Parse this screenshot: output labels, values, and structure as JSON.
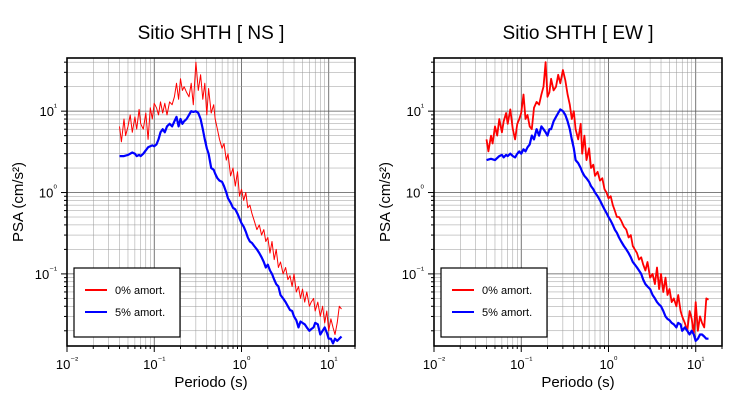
{
  "chart_data": [
    {
      "type": "line",
      "title": "Sitio SHTH [ NS ]",
      "xlabel": "Periodo (s)",
      "ylabel": "PSA (cm/s²)",
      "xscale": "log",
      "yscale": "log",
      "xlim": [
        0.01,
        20
      ],
      "ylim": [
        0.013,
        45
      ],
      "grid": true,
      "legend_position": "bottom-left",
      "x_ticks": [
        "10⁻²",
        "10⁻¹",
        "10⁰",
        "10¹"
      ],
      "y_ticks": [
        "10⁻¹",
        "10⁰",
        "10¹"
      ],
      "series": [
        {
          "name": "0% amort.",
          "color": "#ff0000",
          "x": [
            0.04,
            0.042,
            0.045,
            0.047,
            0.05,
            0.053,
            0.056,
            0.06,
            0.063,
            0.067,
            0.07,
            0.075,
            0.08,
            0.085,
            0.09,
            0.095,
            0.1,
            0.106,
            0.112,
            0.118,
            0.125,
            0.132,
            0.14,
            0.15,
            0.16,
            0.17,
            0.18,
            0.19,
            0.2,
            0.21,
            0.22,
            0.235,
            0.25,
            0.265,
            0.28,
            0.3,
            0.32,
            0.34,
            0.36,
            0.38,
            0.4,
            0.42,
            0.45,
            0.48,
            0.5,
            0.53,
            0.56,
            0.6,
            0.63,
            0.67,
            0.7,
            0.75,
            0.8,
            0.85,
            0.9,
            0.95,
            1.0,
            1.06,
            1.12,
            1.18,
            1.25,
            1.32,
            1.4,
            1.5,
            1.6,
            1.7,
            1.8,
            1.9,
            2.0,
            2.12,
            2.24,
            2.37,
            2.5,
            2.65,
            2.8,
            3.0,
            3.2,
            3.4,
            3.6,
            3.8,
            4.0,
            4.25,
            4.5,
            4.75,
            5.0,
            5.3,
            5.6,
            6.0,
            6.3,
            6.7,
            7.0,
            7.5,
            8.0,
            8.5,
            9.0,
            9.5,
            10.0,
            10.6,
            11.2,
            11.8,
            12.5,
            13.2,
            14.0
          ],
          "y": [
            6.5,
            4.2,
            8.0,
            5.0,
            6.5,
            9.0,
            5.5,
            8.5,
            6.0,
            10.5,
            7.0,
            6.0,
            9.5,
            4.5,
            11.0,
            8.0,
            12.5,
            11.0,
            9.0,
            13.0,
            9.5,
            12.5,
            9.0,
            13.0,
            12.0,
            15.0,
            22.0,
            14.0,
            25.0,
            18.0,
            20.0,
            17.0,
            15.0,
            22.0,
            12.0,
            40.0,
            18.0,
            28.0,
            14.0,
            22.0,
            9.0,
            19.0,
            9.5,
            12.0,
            8.0,
            6.0,
            4.5,
            3.5,
            4.0,
            2.5,
            3.0,
            1.6,
            2.0,
            1.2,
            1.8,
            0.9,
            1.1,
            0.8,
            1.0,
            0.65,
            0.7,
            0.55,
            0.45,
            0.35,
            0.4,
            0.3,
            0.35,
            0.25,
            0.28,
            0.18,
            0.25,
            0.15,
            0.2,
            0.12,
            0.14,
            0.1,
            0.12,
            0.085,
            0.095,
            0.07,
            0.1,
            0.06,
            0.07,
            0.05,
            0.065,
            0.045,
            0.06,
            0.04,
            0.045,
            0.05,
            0.035,
            0.045,
            0.03,
            0.04,
            0.025,
            0.035,
            0.02,
            0.028,
            0.022,
            0.018,
            0.025,
            0.04,
            0.037
          ]
        },
        {
          "name": "5% amort.",
          "color": "#0000ff",
          "x": [
            0.04,
            0.045,
            0.05,
            0.056,
            0.06,
            0.063,
            0.067,
            0.07,
            0.075,
            0.08,
            0.085,
            0.09,
            0.095,
            0.1,
            0.106,
            0.112,
            0.118,
            0.125,
            0.132,
            0.14,
            0.15,
            0.16,
            0.17,
            0.18,
            0.19,
            0.2,
            0.21,
            0.22,
            0.235,
            0.25,
            0.265,
            0.28,
            0.3,
            0.32,
            0.34,
            0.36,
            0.38,
            0.4,
            0.42,
            0.45,
            0.48,
            0.5,
            0.53,
            0.56,
            0.6,
            0.63,
            0.67,
            0.7,
            0.75,
            0.8,
            0.85,
            0.9,
            0.95,
            1.0,
            1.06,
            1.12,
            1.18,
            1.25,
            1.32,
            1.4,
            1.5,
            1.6,
            1.7,
            1.8,
            1.9,
            2.0,
            2.12,
            2.24,
            2.37,
            2.5,
            2.65,
            2.8,
            3.0,
            3.2,
            3.4,
            3.6,
            3.8,
            4.0,
            4.25,
            4.5,
            4.75,
            5.0,
            5.3,
            5.6,
            6.0,
            6.3,
            6.7,
            7.0,
            7.5,
            8.0,
            8.5,
            9.0,
            9.5,
            10.0,
            10.6,
            11.2,
            11.8,
            12.5,
            13.2,
            14.0
          ],
          "y": [
            2.8,
            2.8,
            2.9,
            3.1,
            3.0,
            2.8,
            2.9,
            2.8,
            3.0,
            3.3,
            3.6,
            3.7,
            3.8,
            3.7,
            3.9,
            4.5,
            5.5,
            6.0,
            5.5,
            6.5,
            7.0,
            6.5,
            7.5,
            8.5,
            6.5,
            8.0,
            7.0,
            7.5,
            8.0,
            9.0,
            10.0,
            9.8,
            10.0,
            9.5,
            8.0,
            6.0,
            4.5,
            3.5,
            3.0,
            2.0,
            1.9,
            1.7,
            1.5,
            1.4,
            1.35,
            1.2,
            1.0,
            0.85,
            0.75,
            0.65,
            0.62,
            0.55,
            0.48,
            0.42,
            0.38,
            0.33,
            0.28,
            0.25,
            0.24,
            0.22,
            0.2,
            0.18,
            0.16,
            0.14,
            0.12,
            0.13,
            0.11,
            0.1,
            0.085,
            0.075,
            0.07,
            0.055,
            0.05,
            0.045,
            0.04,
            0.036,
            0.035,
            0.03,
            0.027,
            0.022,
            0.026,
            0.025,
            0.024,
            0.022,
            0.02,
            0.021,
            0.022,
            0.025,
            0.024,
            0.018,
            0.02,
            0.022,
            0.019,
            0.016,
            0.016,
            0.014,
            0.016,
            0.015,
            0.016,
            0.017
          ]
        }
      ]
    },
    {
      "type": "line",
      "title": "Sitio SHTH [ EW ]",
      "xlabel": "Periodo (s)",
      "ylabel": "PSA (cm/s²)",
      "xscale": "log",
      "yscale": "log",
      "xlim": [
        0.01,
        20
      ],
      "ylim": [
        0.013,
        45
      ],
      "grid": true,
      "legend_position": "bottom-left",
      "x_ticks": [
        "10⁻²",
        "10⁻¹",
        "10⁰",
        "10¹"
      ],
      "y_ticks": [
        "10⁻¹",
        "10⁰",
        "10¹"
      ],
      "series": [
        {
          "name": "0% amort.",
          "color": "#ff0000",
          "x": [
            0.04,
            0.042,
            0.045,
            0.047,
            0.05,
            0.053,
            0.056,
            0.06,
            0.063,
            0.067,
            0.07,
            0.075,
            0.08,
            0.085,
            0.09,
            0.095,
            0.1,
            0.106,
            0.112,
            0.118,
            0.125,
            0.132,
            0.14,
            0.15,
            0.16,
            0.17,
            0.18,
            0.19,
            0.2,
            0.21,
            0.22,
            0.235,
            0.25,
            0.265,
            0.28,
            0.3,
            0.32,
            0.34,
            0.36,
            0.38,
            0.4,
            0.42,
            0.45,
            0.48,
            0.5,
            0.53,
            0.56,
            0.6,
            0.63,
            0.67,
            0.7,
            0.75,
            0.8,
            0.85,
            0.9,
            0.95,
            1.0,
            1.06,
            1.12,
            1.18,
            1.25,
            1.32,
            1.4,
            1.5,
            1.6,
            1.7,
            1.8,
            1.9,
            2.0,
            2.12,
            2.24,
            2.37,
            2.5,
            2.65,
            2.8,
            3.0,
            3.2,
            3.4,
            3.6,
            3.8,
            4.0,
            4.25,
            4.5,
            4.75,
            5.0,
            5.3,
            5.6,
            6.0,
            6.3,
            6.7,
            7.0,
            7.5,
            8.0,
            8.5,
            9.0,
            9.5,
            10.0,
            10.6,
            11.2,
            11.8,
            12.5,
            13.2,
            14.0
          ],
          "y": [
            4.5,
            3.2,
            5.0,
            4.0,
            6.5,
            5.0,
            8.0,
            5.5,
            7.5,
            9.5,
            7.0,
            10.5,
            6.0,
            4.5,
            7.0,
            8.0,
            9.5,
            16.0,
            8.0,
            9.0,
            6.5,
            6.0,
            11.0,
            13.0,
            12.0,
            16.0,
            20.0,
            40.0,
            15.0,
            17.0,
            25.0,
            18.0,
            20.0,
            28.0,
            22.0,
            32.0,
            24.0,
            16.0,
            12.0,
            8.0,
            10.0,
            6.0,
            4.5,
            7.0,
            3.0,
            5.0,
            2.5,
            3.5,
            2.0,
            2.2,
            1.6,
            1.8,
            1.4,
            1.5,
            1.1,
            1.0,
            0.85,
            0.9,
            0.7,
            0.6,
            0.5,
            0.5,
            0.45,
            0.38,
            0.35,
            0.28,
            0.3,
            0.22,
            0.2,
            0.18,
            0.15,
            0.16,
            0.13,
            0.11,
            0.14,
            0.09,
            0.1,
            0.075,
            0.12,
            0.065,
            0.1,
            0.06,
            0.09,
            0.055,
            0.065,
            0.045,
            0.05,
            0.04,
            0.055,
            0.035,
            0.03,
            0.025,
            0.02,
            0.035,
            0.028,
            0.018,
            0.045,
            0.02,
            0.03,
            0.025,
            0.022,
            0.05,
            0.048
          ]
        },
        {
          "name": "5% amort.",
          "color": "#0000ff",
          "x": [
            0.04,
            0.045,
            0.05,
            0.056,
            0.06,
            0.063,
            0.067,
            0.07,
            0.075,
            0.08,
            0.085,
            0.09,
            0.095,
            0.1,
            0.106,
            0.112,
            0.118,
            0.125,
            0.132,
            0.14,
            0.15,
            0.16,
            0.17,
            0.18,
            0.19,
            0.2,
            0.21,
            0.22,
            0.235,
            0.25,
            0.265,
            0.28,
            0.3,
            0.32,
            0.34,
            0.36,
            0.38,
            0.4,
            0.42,
            0.45,
            0.48,
            0.5,
            0.53,
            0.56,
            0.6,
            0.63,
            0.67,
            0.7,
            0.75,
            0.8,
            0.85,
            0.9,
            0.95,
            1.0,
            1.06,
            1.12,
            1.18,
            1.25,
            1.32,
            1.4,
            1.5,
            1.6,
            1.7,
            1.8,
            1.9,
            2.0,
            2.12,
            2.24,
            2.37,
            2.5,
            2.65,
            2.8,
            3.0,
            3.2,
            3.4,
            3.6,
            3.8,
            4.0,
            4.25,
            4.5,
            4.75,
            5.0,
            5.3,
            5.6,
            6.0,
            6.3,
            6.7,
            7.0,
            7.5,
            8.0,
            8.5,
            9.0,
            9.5,
            10.0,
            10.6,
            11.2,
            11.8,
            12.5,
            13.2,
            14.0
          ],
          "y": [
            2.5,
            2.6,
            2.5,
            2.8,
            2.9,
            2.7,
            2.9,
            2.8,
            3.0,
            2.8,
            2.7,
            3.0,
            3.2,
            3.0,
            3.4,
            3.2,
            3.6,
            3.9,
            5.0,
            4.5,
            6.0,
            5.0,
            6.5,
            6.0,
            5.5,
            5.0,
            6.0,
            6.0,
            7.5,
            8.5,
            9.5,
            10.5,
            10.0,
            9.0,
            7.5,
            6.0,
            4.5,
            3.5,
            2.5,
            2.3,
            2.0,
            1.8,
            1.6,
            1.5,
            1.35,
            1.2,
            1.1,
            1.0,
            0.9,
            0.8,
            0.7,
            0.62,
            0.56,
            0.5,
            0.45,
            0.4,
            0.35,
            0.32,
            0.28,
            0.25,
            0.22,
            0.2,
            0.18,
            0.16,
            0.14,
            0.13,
            0.12,
            0.11,
            0.1,
            0.085,
            0.075,
            0.07,
            0.065,
            0.055,
            0.05,
            0.045,
            0.042,
            0.04,
            0.035,
            0.03,
            0.028,
            0.027,
            0.025,
            0.024,
            0.022,
            0.025,
            0.024,
            0.02,
            0.022,
            0.02,
            0.018,
            0.02,
            0.018,
            0.015,
            0.016,
            0.018,
            0.018,
            0.017,
            0.016,
            0.016
          ]
        }
      ]
    }
  ]
}
